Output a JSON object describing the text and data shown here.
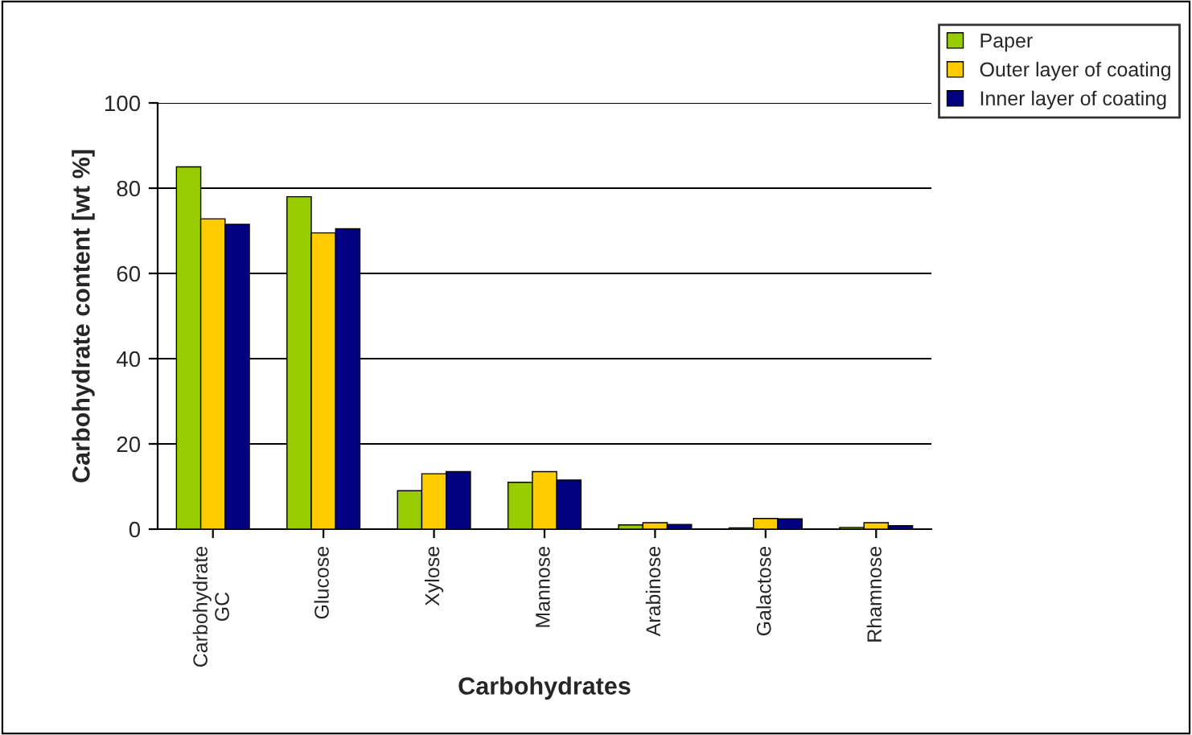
{
  "chart_data": {
    "type": "bar",
    "xlabel": "Carbohydrates",
    "ylabel": "Carbohydrate content [wt %]",
    "categories": [
      "Carbohydrate\nGC",
      "Glucose",
      "Xylose",
      "Mannose",
      "Arabinose",
      "Galactose",
      "Rhamnose"
    ],
    "series": [
      {
        "name": "Paper",
        "color": "#99cc00",
        "values": [
          85,
          78,
          9,
          11,
          1,
          0.3,
          0.4
        ]
      },
      {
        "name": "Outer layer of coating",
        "color": "#ffcc00",
        "values": [
          72.8,
          69.5,
          13,
          13.5,
          1.5,
          2.5,
          1.5
        ]
      },
      {
        "name": "Inner layer of coating",
        "color": "#000080",
        "values": [
          71.5,
          70.5,
          13.5,
          11.5,
          1.1,
          2.4,
          0.8
        ]
      }
    ],
    "ylim": [
      0,
      100
    ],
    "yticks": [
      0,
      20,
      40,
      60,
      80,
      100
    ],
    "grid": "y",
    "legend": "top right"
  }
}
